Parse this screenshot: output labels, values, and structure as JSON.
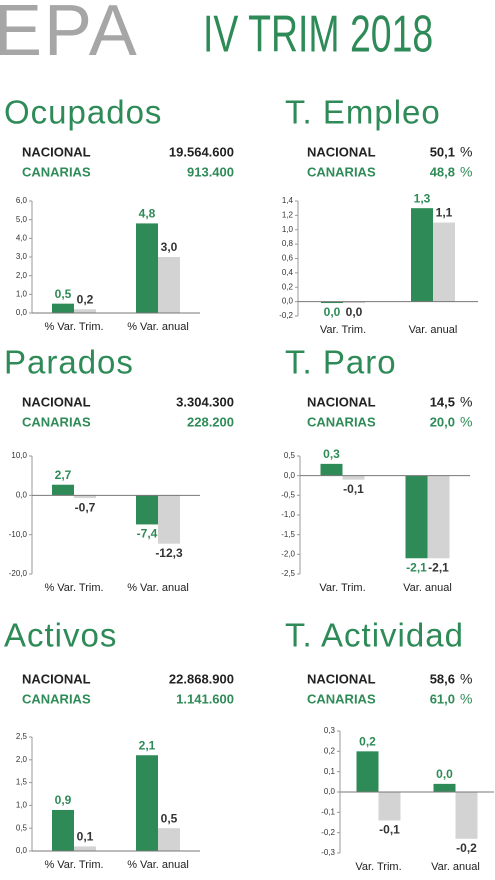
{
  "header": {
    "logo": "EPA",
    "title": "IV TRIM 2018"
  },
  "chart_data": [
    {
      "type": "bar",
      "title": "Ocupados",
      "stats": [
        {
          "label": "NACIONAL",
          "value": "19.564.600"
        },
        {
          "label": "CANARIAS",
          "value": "913.400"
        }
      ],
      "categories": [
        "% Var. Trim.",
        "% Var. anual"
      ],
      "series": [
        {
          "color": "#2e8b57",
          "values": [
            0.5,
            4.8
          ],
          "value_labels": [
            "0,5",
            "4,8"
          ]
        },
        {
          "color": "#d3d3d3",
          "values": [
            0.2,
            3.0
          ],
          "value_labels": [
            "0,2",
            "3,0"
          ]
        }
      ],
      "ylim": [
        0,
        6
      ],
      "yticks": [
        {
          "value": 0,
          "label": "0,0"
        },
        {
          "value": 1,
          "label": "1,0"
        },
        {
          "value": 2,
          "label": "2,0"
        },
        {
          "value": 3,
          "label": "3,0"
        },
        {
          "value": 4,
          "label": "4,0"
        },
        {
          "value": 5,
          "label": "5,0"
        },
        {
          "value": 6,
          "label": "6,0"
        }
      ]
    },
    {
      "type": "bar",
      "title": "T. Empleo",
      "stats": [
        {
          "label": "NACIONAL",
          "value": "50,1",
          "unit": "%"
        },
        {
          "label": "CANARIAS",
          "value": "48,8",
          "unit": "%"
        }
      ],
      "categories": [
        "Var. Trim.",
        "Var. anual"
      ],
      "series": [
        {
          "color": "#2e8b57",
          "values": [
            -0.02,
            1.3
          ],
          "value_labels": [
            "0,0",
            "1,3"
          ]
        },
        {
          "color": "#d3d3d3",
          "values": [
            -0.02,
            1.1
          ],
          "value_labels": [
            "0,0",
            "1,1"
          ]
        }
      ],
      "ylim": [
        -0.2,
        1.4
      ],
      "yticks": [
        {
          "value": -0.2,
          "label": "-0,2"
        },
        {
          "value": 0,
          "label": "0,0"
        },
        {
          "value": 0.2,
          "label": "0,2"
        },
        {
          "value": 0.4,
          "label": "0,4"
        },
        {
          "value": 0.6,
          "label": "0,6"
        },
        {
          "value": 0.8,
          "label": "0,8"
        },
        {
          "value": 1.0,
          "label": "1,0"
        },
        {
          "value": 1.2,
          "label": "1,2"
        },
        {
          "value": 1.4,
          "label": "1,4"
        }
      ]
    },
    {
      "type": "bar",
      "title": "Parados",
      "stats": [
        {
          "label": "NACIONAL",
          "value": "3.304.300"
        },
        {
          "label": "CANARIAS",
          "value": "228.200"
        }
      ],
      "categories": [
        "% Var. Trim.",
        "% Var. anual"
      ],
      "series": [
        {
          "color": "#2e8b57",
          "values": [
            2.7,
            -7.4
          ],
          "value_labels": [
            "2,7",
            "-7,4"
          ]
        },
        {
          "color": "#d3d3d3",
          "values": [
            -0.7,
            -12.3
          ],
          "value_labels": [
            "-0,7",
            "-12,3"
          ]
        }
      ],
      "ylim": [
        -20,
        10
      ],
      "yticks": [
        {
          "value": -20,
          "label": "-20,0"
        },
        {
          "value": -10,
          "label": "-10,0"
        },
        {
          "value": 0,
          "label": "0,0"
        },
        {
          "value": 10,
          "label": "10,0"
        }
      ]
    },
    {
      "type": "bar",
      "title": "T. Paro",
      "stats": [
        {
          "label": "NACIONAL",
          "value": "14,5",
          "unit": "%"
        },
        {
          "label": "CANARIAS",
          "value": "20,0",
          "unit": "%"
        }
      ],
      "categories": [
        "Var. Trim.",
        "Var. anual"
      ],
      "series": [
        {
          "color": "#2e8b57",
          "values": [
            0.3,
            -2.1
          ],
          "value_labels": [
            "0,3",
            "-2,1"
          ]
        },
        {
          "color": "#d3d3d3",
          "values": [
            -0.1,
            -2.1
          ],
          "value_labels": [
            "-0,1",
            "-2,1"
          ]
        }
      ],
      "ylim": [
        -2.5,
        0.5
      ],
      "yticks": [
        {
          "value": -2.5,
          "label": "-2,5"
        },
        {
          "value": -2.0,
          "label": "-2,0"
        },
        {
          "value": -1.5,
          "label": "-1,5"
        },
        {
          "value": -1.0,
          "label": "-1,0"
        },
        {
          "value": -0.5,
          "label": "-0,5"
        },
        {
          "value": 0,
          "label": "0,0"
        },
        {
          "value": 0.5,
          "label": "0,5"
        }
      ]
    },
    {
      "type": "bar",
      "title": "Activos",
      "stats": [
        {
          "label": "NACIONAL",
          "value": "22.868.900"
        },
        {
          "label": "CANARIAS",
          "value": "1.141.600"
        }
      ],
      "categories": [
        "% Var. Trim.",
        "% Var. anual"
      ],
      "series": [
        {
          "color": "#2e8b57",
          "values": [
            0.9,
            2.1
          ],
          "value_labels": [
            "0,9",
            "2,1"
          ]
        },
        {
          "color": "#d3d3d3",
          "values": [
            0.1,
            0.5
          ],
          "value_labels": [
            "0,1",
            "0,5"
          ]
        }
      ],
      "ylim": [
        0,
        2.5
      ],
      "yticks": [
        {
          "value": 0,
          "label": "0,0"
        },
        {
          "value": 0.5,
          "label": "0,5"
        },
        {
          "value": 1.0,
          "label": "1,0"
        },
        {
          "value": 1.5,
          "label": "1,5"
        },
        {
          "value": 2.0,
          "label": "2,0"
        },
        {
          "value": 2.5,
          "label": "2,5"
        }
      ]
    },
    {
      "type": "bar",
      "title": "T. Actividad",
      "stats": [
        {
          "label": "NACIONAL",
          "value": "58,6",
          "unit": "%"
        },
        {
          "label": "CANARIAS",
          "value": "61,0",
          "unit": "%"
        }
      ],
      "categories": [
        "Var. Trim.",
        "Var. anual"
      ],
      "series": [
        {
          "color": "#2e8b57",
          "values": [
            0.2,
            0.04
          ],
          "value_labels": [
            "0,2",
            "0,0"
          ]
        },
        {
          "color": "#d3d3d3",
          "values": [
            -0.14,
            -0.23
          ],
          "value_labels": [
            "-0,1",
            "-0,2"
          ]
        }
      ],
      "ylim": [
        -0.3,
        0.3
      ],
      "yticks": [
        {
          "value": -0.3,
          "label": "-0,3"
        },
        {
          "value": -0.2,
          "label": "-0,2"
        },
        {
          "value": -0.1,
          "label": "-0,1"
        },
        {
          "value": 0,
          "label": "0,0"
        },
        {
          "value": 0.1,
          "label": "0,1"
        },
        {
          "value": 0.2,
          "label": "0,2"
        },
        {
          "value": 0.3,
          "label": "0,3"
        }
      ]
    }
  ]
}
